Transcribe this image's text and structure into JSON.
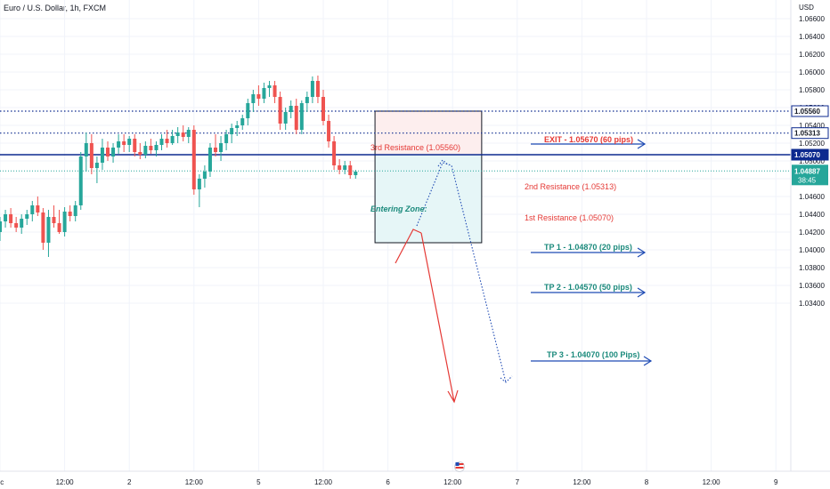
{
  "header": {
    "title": "Euro / U.S. Dollar, 1h, FXCM"
  },
  "chart_data": {
    "type": "candlestick",
    "currency_label": "USD",
    "ylim": [
      1.0335,
      1.0675
    ],
    "y_ticks": [
      "1.06600",
      "1.06400",
      "1.06200",
      "1.06000",
      "1.05800",
      "1.05600",
      "1.05400",
      "1.05200",
      "1.05000",
      "1.04800",
      "1.04600",
      "1.04400",
      "1.04200",
      "1.04000",
      "1.03800",
      "1.03600",
      "1.03400"
    ],
    "x_ticks": [
      {
        "label": "ec",
        "t": 0
      },
      {
        "label": "12:00",
        "t": 12
      },
      {
        "label": "2",
        "t": 24
      },
      {
        "label": "12:00",
        "t": 36
      },
      {
        "label": "5",
        "t": 48
      },
      {
        "label": "12:00",
        "t": 60
      },
      {
        "label": "6",
        "t": 72
      },
      {
        "label": "12:00",
        "t": 84
      },
      {
        "label": "7",
        "t": 96
      },
      {
        "label": "12:00",
        "t": 108
      },
      {
        "label": "8",
        "t": 120
      },
      {
        "label": "12:00",
        "t": 132
      },
      {
        "label": "9",
        "t": 144
      }
    ],
    "candles": [
      [
        1.042,
        1.0437,
        1.041,
        1.0432
      ],
      [
        1.0432,
        1.0445,
        1.0425,
        1.044
      ],
      [
        1.044,
        1.0447,
        1.0425,
        1.043
      ],
      [
        1.043,
        1.0437,
        1.042,
        1.0425
      ],
      [
        1.0425,
        1.044,
        1.0418,
        1.0435
      ],
      [
        1.0435,
        1.0445,
        1.0428,
        1.044
      ],
      [
        1.044,
        1.0455,
        1.0432,
        1.045
      ],
      [
        1.045,
        1.046,
        1.0438,
        1.0442
      ],
      [
        1.0442,
        1.0447,
        1.04,
        1.0408
      ],
      [
        1.0408,
        1.0445,
        1.0392,
        1.0437
      ],
      [
        1.0437,
        1.045,
        1.0425,
        1.043
      ],
      [
        1.043,
        1.0445,
        1.0418,
        1.042
      ],
      [
        1.042,
        1.0448,
        1.0415,
        1.0443
      ],
      [
        1.0443,
        1.045,
        1.0432,
        1.0438
      ],
      [
        1.0438,
        1.0455,
        1.0432,
        1.045
      ],
      [
        1.045,
        1.051,
        1.0445,
        1.0505
      ],
      [
        1.0505,
        1.0532,
        1.0488,
        1.052
      ],
      [
        1.052,
        1.053,
        1.0485,
        1.0492
      ],
      [
        1.0492,
        1.0505,
        1.0475,
        1.0498
      ],
      [
        1.0498,
        1.0525,
        1.049,
        1.0515
      ],
      [
        1.0515,
        1.0522,
        1.05,
        1.0505
      ],
      [
        1.0505,
        1.052,
        1.0498,
        1.0515
      ],
      [
        1.0515,
        1.053,
        1.0508,
        1.0522
      ],
      [
        1.0522,
        1.053,
        1.051,
        1.0518
      ],
      [
        1.0518,
        1.0528,
        1.051,
        1.0525
      ],
      [
        1.0525,
        1.053,
        1.0505,
        1.051
      ],
      [
        1.051,
        1.052,
        1.0502,
        1.0507
      ],
      [
        1.0507,
        1.0522,
        1.0503,
        1.0517
      ],
      [
        1.0517,
        1.0525,
        1.0508,
        1.0512
      ],
      [
        1.0512,
        1.0522,
        1.0505,
        1.0518
      ],
      [
        1.0518,
        1.053,
        1.0512,
        1.0525
      ],
      [
        1.0525,
        1.0535,
        1.0515,
        1.052
      ],
      [
        1.052,
        1.0535,
        1.0518,
        1.0528
      ],
      [
        1.0528,
        1.0538,
        1.052,
        1.0532
      ],
      [
        1.0532,
        1.054,
        1.0522,
        1.0527
      ],
      [
        1.0527,
        1.0538,
        1.052,
        1.0535
      ],
      [
        1.0535,
        1.054,
        1.0462,
        1.0468
      ],
      [
        1.0468,
        1.0485,
        1.0448,
        1.048
      ],
      [
        1.048,
        1.0495,
        1.047,
        1.0488
      ],
      [
        1.0488,
        1.052,
        1.0482,
        1.0515
      ],
      [
        1.0515,
        1.053,
        1.0505,
        1.051
      ],
      [
        1.051,
        1.0528,
        1.05,
        1.052
      ],
      [
        1.052,
        1.0535,
        1.0512,
        1.053
      ],
      [
        1.053,
        1.0542,
        1.052,
        1.0537
      ],
      [
        1.0537,
        1.0545,
        1.0528,
        1.054
      ],
      [
        1.054,
        1.0552,
        1.0535,
        1.0548
      ],
      [
        1.0548,
        1.057,
        1.054,
        1.0565
      ],
      [
        1.0565,
        1.058,
        1.0555,
        1.0575
      ],
      [
        1.0575,
        1.0585,
        1.0562,
        1.057
      ],
      [
        1.057,
        1.0588,
        1.0565,
        1.0582
      ],
      [
        1.0582,
        1.059,
        1.0572,
        1.0585
      ],
      [
        1.0585,
        1.059,
        1.0565,
        1.0572
      ],
      [
        1.0572,
        1.0578,
        1.0535,
        1.0542
      ],
      [
        1.0542,
        1.056,
        1.0535,
        1.0555
      ],
      [
        1.0555,
        1.0568,
        1.0548,
        1.0562
      ],
      [
        1.0562,
        1.057,
        1.053,
        1.0535
      ],
      [
        1.0535,
        1.0568,
        1.053,
        1.0565
      ],
      [
        1.0565,
        1.0578,
        1.0555,
        1.0572
      ],
      [
        1.0572,
        1.0595,
        1.0565,
        1.059
      ],
      [
        1.059,
        1.0596,
        1.0565,
        1.0572
      ],
      [
        1.0572,
        1.058,
        1.054,
        1.0545
      ],
      [
        1.0545,
        1.0552,
        1.0515,
        1.0522
      ],
      [
        1.0522,
        1.0528,
        1.049,
        1.0495
      ],
      [
        1.0495,
        1.0502,
        1.0485,
        1.049
      ],
      [
        1.049,
        1.05,
        1.0485,
        1.0495
      ],
      [
        1.0495,
        1.05,
        1.048,
        1.0484
      ],
      [
        1.0484,
        1.049,
        1.048,
        1.0488
      ]
    ],
    "levels": [
      {
        "name": "1.05560",
        "value": 1.0556,
        "style": "dotted"
      },
      {
        "name": "1.05313",
        "value": 1.05313,
        "style": "dotted"
      },
      {
        "name": "1.05070",
        "value": 1.0507,
        "style": "solid"
      }
    ],
    "current_price": {
      "value": 1.04887,
      "label": "1.04887",
      "countdown": "38:45"
    },
    "position": {
      "entry": 1.0507,
      "top": 1.0556,
      "bottom": 1.0408,
      "t_start": 69.6,
      "t_end": 89.4
    },
    "annotations": {
      "third_resistance": "3rd Resistance (1.05560)",
      "second_resistance": "2nd Resistance (1.05313)",
      "first_resistance": "1st Resistance (1.05070)",
      "entering_zone": "Entering Zone:",
      "exit": "EXIT - 1.05670 (60 pips)",
      "tp1": "TP 1 - 1.04870 (20 pips)",
      "tp2": "TP 2 - 1.04570 (50 pips)",
      "tp3": "TP 3 - 1.04070 (100 Pips)"
    },
    "colors": {
      "up": "#26a69a",
      "down": "#ef5350",
      "level_line": "#0d2a8f",
      "arrow_blue": "#1f4bb4",
      "arrow_red": "#e53935",
      "profit_fill": "#e6f6f7",
      "loss_fill": "#fdeeee",
      "tp_text": "#1b8a7c",
      "exit_text": "#e53935"
    }
  }
}
